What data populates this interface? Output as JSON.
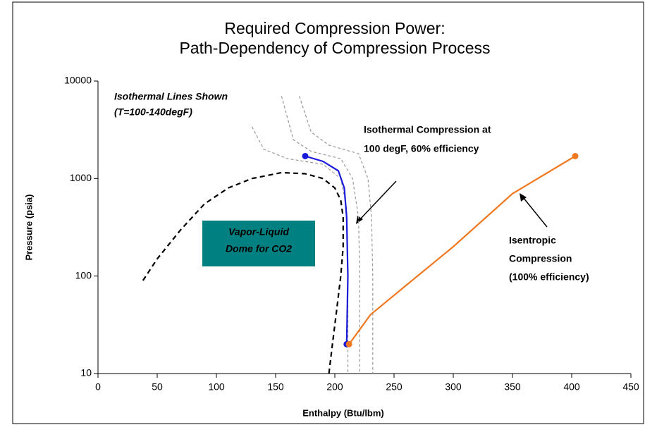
{
  "chart_data": {
    "type": "line",
    "title": [
      "Required Compression Power:",
      "Path-Dependency of Compression Process"
    ],
    "xlabel": "Enthalpy (Btu/lbm)",
    "ylabel": "Pressure (psia)",
    "xlim": [
      0,
      450
    ],
    "xticks": [
      0,
      50,
      100,
      150,
      200,
      250,
      300,
      350,
      400,
      450
    ],
    "ylim": [
      10,
      10000
    ],
    "yticks": [
      10,
      100,
      1000,
      10000
    ],
    "ylog": true,
    "series": [
      {
        "color": "#000000",
        "dash": true,
        "width": 2.2,
        "x": [
          38,
          50,
          70,
          90,
          110,
          130,
          155,
          175,
          190,
          200,
          205,
          207,
          207,
          205,
          202,
          198,
          195
        ],
        "values": [
          90,
          150,
          300,
          550,
          800,
          1000,
          1150,
          1120,
          1000,
          800,
          600,
          400,
          200,
          100,
          50,
          20,
          10
        ]
      },
      {
        "color": "#999999",
        "dash": true,
        "width": 1.2,
        "x": [
          130,
          140,
          160,
          190,
          205,
          210,
          211,
          211
        ],
        "values": [
          3400,
          2000,
          1600,
          1400,
          1000,
          500,
          100,
          10
        ]
      },
      {
        "color": "#999999",
        "dash": true,
        "width": 1.2,
        "x": [
          155,
          165,
          180,
          205,
          215,
          220,
          221,
          221
        ],
        "values": [
          7000,
          2500,
          1900,
          1600,
          1000,
          400,
          100,
          10
        ]
      },
      {
        "color": "#999999",
        "dash": true,
        "width": 1.2,
        "x": [
          170,
          180,
          195,
          220,
          228,
          231,
          232,
          232
        ],
        "values": [
          7000,
          3000,
          2200,
          1800,
          1000,
          400,
          100,
          10
        ]
      },
      {
        "color": "#1a1adb",
        "dash": false,
        "width": 2.2,
        "markers": true,
        "x": [
          175,
          190,
          203,
          208,
          210,
          211,
          210
        ],
        "values": [
          1700,
          1500,
          1200,
          800,
          400,
          100,
          20
        ]
      },
      {
        "color": "#f07820",
        "dash": false,
        "width": 2.2,
        "markers": true,
        "x": [
          212,
          230,
          260,
          300,
          350,
          403
        ],
        "values": [
          20,
          40,
          80,
          200,
          700,
          1700
        ]
      }
    ],
    "annotations": [
      {
        "text": [
          "Isothermal Lines Shown",
          "(T=100-140degF)"
        ],
        "color": "#999999"
      },
      {
        "text": [
          "Isothermal Compression at",
          "100 degF, 60% efficiency"
        ],
        "color": "#1a1adb"
      },
      {
        "text": [
          "Isentropic",
          "Compression",
          "(100% efficiency)"
        ],
        "color": "#f07820"
      },
      {
        "text": [
          "Vapor-Liquid",
          "Dome for CO2"
        ],
        "color": "#ffffff",
        "box": "#008080"
      }
    ]
  }
}
